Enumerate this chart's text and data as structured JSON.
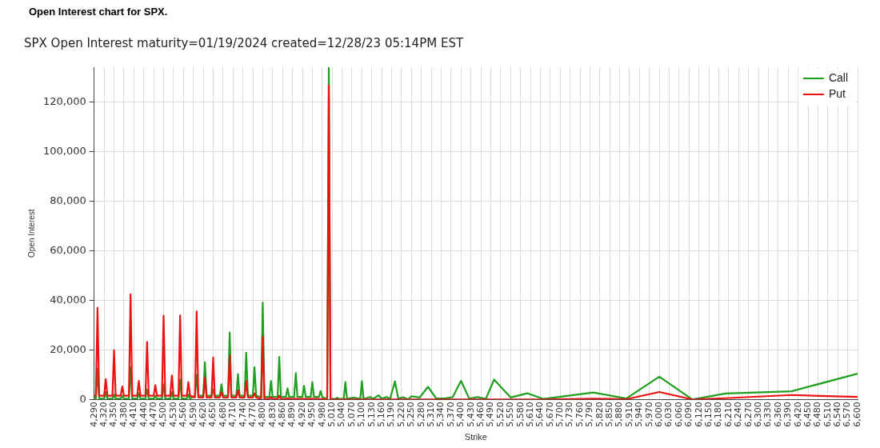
{
  "chart_data": {
    "type": "line",
    "title": "Open Interest chart for SPX.",
    "subtitle": "SPX Open Interest maturity=01/19/2024 created=12/28/23 05:14PM EST",
    "xlabel": "Strike",
    "ylabel": "Open Interest",
    "x": [
      4290,
      4295,
      4300,
      4305,
      4320,
      4325,
      4330,
      4345,
      4350,
      4355,
      4370,
      4375,
      4380,
      4395,
      4400,
      4405,
      4420,
      4425,
      4430,
      4445,
      4450,
      4455,
      4470,
      4475,
      4480,
      4495,
      4500,
      4505,
      4520,
      4525,
      4530,
      4545,
      4550,
      4555,
      4570,
      4575,
      4580,
      4595,
      4600,
      4605,
      4620,
      4625,
      4630,
      4645,
      4650,
      4655,
      4670,
      4675,
      4680,
      4695,
      4700,
      4705,
      4720,
      4725,
      4730,
      4745,
      4750,
      4755,
      4770,
      4775,
      4780,
      4795,
      4800,
      4805,
      4820,
      4825,
      4830,
      4845,
      4850,
      4855,
      4870,
      4875,
      4880,
      4895,
      4900,
      4905,
      4920,
      4925,
      4930,
      4945,
      4950,
      4955,
      4970,
      4975,
      4980,
      4995,
      5000,
      5005,
      5020,
      5025,
      5030,
      5045,
      5050,
      5055,
      5070,
      5075,
      5080,
      5095,
      5100,
      5105,
      5125,
      5135,
      5150,
      5160,
      5175,
      5185,
      5200,
      5210,
      5225,
      5240,
      5250,
      5275,
      5300,
      5325,
      5350,
      5375,
      5400,
      5425,
      5450,
      5475,
      5500,
      5550,
      5600,
      5650,
      5800,
      5900,
      6000,
      6100,
      6200,
      6400,
      6600
    ],
    "series": [
      {
        "name": "Call",
        "color": "#1f9e1f",
        "values": [
          1000,
          300,
          12300,
          300,
          300,
          3000,
          300,
          300,
          2000,
          300,
          300,
          1500,
          300,
          300,
          13000,
          300,
          300,
          2500,
          300,
          300,
          4000,
          300,
          300,
          1500,
          300,
          300,
          6000,
          300,
          300,
          3000,
          300,
          300,
          8000,
          300,
          300,
          2000,
          300,
          1500,
          10000,
          1500,
          1500,
          15000,
          1500,
          1500,
          4000,
          1500,
          1500,
          6100,
          1500,
          1500,
          27000,
          1500,
          1500,
          10200,
          1500,
          1500,
          18900,
          1500,
          1500,
          13000,
          1500,
          1000,
          39000,
          1000,
          1000,
          7500,
          1000,
          1000,
          17200,
          1000,
          1000,
          4500,
          1000,
          1000,
          10600,
          1000,
          1000,
          5500,
          1000,
          1000,
          7000,
          1000,
          1000,
          3400,
          1000,
          200,
          134000,
          200,
          200,
          700,
          200,
          200,
          7000,
          200,
          600,
          800,
          600,
          200,
          7400,
          200,
          1000,
          300,
          1700,
          300,
          1000,
          100,
          7300,
          400,
          900,
          0,
          1300,
          800,
          5100,
          400,
          400,
          1000,
          7500,
          300,
          1000,
          200,
          8000,
          800,
          2500,
          200,
          2800,
          400,
          9200,
          0,
          2400,
          3300,
          10400
        ]
      },
      {
        "name": "Put",
        "color": "#ee1111",
        "values": [
          1500,
          1500,
          37000,
          1500,
          1500,
          8200,
          1500,
          1500,
          19800,
          1500,
          1500,
          5200,
          1500,
          1500,
          42400,
          1500,
          1500,
          7500,
          1500,
          1500,
          23200,
          1500,
          1500,
          5800,
          1500,
          1500,
          33800,
          1500,
          1500,
          9700,
          1500,
          1500,
          33900,
          1500,
          1500,
          7000,
          1500,
          800,
          35500,
          800,
          800,
          8900,
          800,
          800,
          16900,
          800,
          800,
          3000,
          800,
          800,
          17800,
          800,
          800,
          3700,
          800,
          800,
          7500,
          800,
          800,
          2400,
          800,
          200,
          25400,
          200,
          200,
          1000,
          200,
          200,
          1500,
          200,
          200,
          500,
          200,
          200,
          300,
          200,
          200,
          200,
          200,
          200,
          300,
          200,
          200,
          100,
          200,
          0,
          126600,
          0,
          0,
          100,
          0,
          0,
          100,
          0,
          0,
          0,
          0,
          0,
          0,
          0,
          0,
          0,
          0,
          0,
          0,
          0,
          0,
          0,
          0,
          0,
          0,
          0,
          0,
          0,
          0,
          0,
          0,
          0,
          0,
          0,
          0,
          0,
          0,
          0,
          300,
          100,
          3000,
          0,
          500,
          1800,
          1000
        ]
      }
    ],
    "xlim": [
      4290,
      6600
    ],
    "xticks": [
      {
        "value": 4290,
        "label": "4,290"
      },
      {
        "value": 4320,
        "label": "4,320"
      },
      {
        "value": 4350,
        "label": "4,350"
      },
      {
        "value": 4380,
        "label": "4,380"
      },
      {
        "value": 4410,
        "label": "4,410"
      },
      {
        "value": 4440,
        "label": "4,440"
      },
      {
        "value": 4470,
        "label": "4,470"
      },
      {
        "value": 4500,
        "label": "4,500"
      },
      {
        "value": 4530,
        "label": "4,530"
      },
      {
        "value": 4560,
        "label": "4,560"
      },
      {
        "value": 4590,
        "label": "4,590"
      },
      {
        "value": 4620,
        "label": "4,620"
      },
      {
        "value": 4650,
        "label": "4,650"
      },
      {
        "value": 4680,
        "label": "4,680"
      },
      {
        "value": 4710,
        "label": "4,710"
      },
      {
        "value": 4740,
        "label": "4,740"
      },
      {
        "value": 4770,
        "label": "4,770"
      },
      {
        "value": 4800,
        "label": "4,800"
      },
      {
        "value": 4830,
        "label": "4,830"
      },
      {
        "value": 4860,
        "label": "4,860"
      },
      {
        "value": 4890,
        "label": "4,890"
      },
      {
        "value": 4920,
        "label": "4,920"
      },
      {
        "value": 4950,
        "label": "4,950"
      },
      {
        "value": 4980,
        "label": "4,980"
      },
      {
        "value": 5010,
        "label": "5,010"
      },
      {
        "value": 5040,
        "label": "5,040"
      },
      {
        "value": 5070,
        "label": "5,070"
      },
      {
        "value": 5100,
        "label": "5,100"
      },
      {
        "value": 5130,
        "label": "5,130"
      },
      {
        "value": 5160,
        "label": "5,160"
      },
      {
        "value": 5190,
        "label": "5,190"
      },
      {
        "value": 5220,
        "label": "5,220"
      },
      {
        "value": 5250,
        "label": "5,250"
      },
      {
        "value": 5280,
        "label": "5,280"
      },
      {
        "value": 5310,
        "label": "5,310"
      },
      {
        "value": 5340,
        "label": "5,340"
      },
      {
        "value": 5370,
        "label": "5,370"
      },
      {
        "value": 5400,
        "label": "5,400"
      },
      {
        "value": 5430,
        "label": "5,430"
      },
      {
        "value": 5460,
        "label": "5,460"
      },
      {
        "value": 5490,
        "label": "5,490"
      },
      {
        "value": 5520,
        "label": "5,520"
      },
      {
        "value": 5550,
        "label": "5,550"
      },
      {
        "value": 5580,
        "label": "5,580"
      },
      {
        "value": 5610,
        "label": "5,610"
      },
      {
        "value": 5640,
        "label": "5,640"
      },
      {
        "value": 5670,
        "label": "5,670"
      },
      {
        "value": 5700,
        "label": "5,700"
      },
      {
        "value": 5730,
        "label": "5,730"
      },
      {
        "value": 5760,
        "label": "5,760"
      },
      {
        "value": 5790,
        "label": "5,790"
      },
      {
        "value": 5820,
        "label": "5,820"
      },
      {
        "value": 5850,
        "label": "5,850"
      },
      {
        "value": 5880,
        "label": "5,880"
      },
      {
        "value": 5910,
        "label": "5,910"
      },
      {
        "value": 5940,
        "label": "5,940"
      },
      {
        "value": 5970,
        "label": "5,970"
      },
      {
        "value": 6000,
        "label": "6,000"
      },
      {
        "value": 6030,
        "label": "6,030"
      },
      {
        "value": 6060,
        "label": "6,060"
      },
      {
        "value": 6090,
        "label": "6,090"
      },
      {
        "value": 6120,
        "label": "6,120"
      },
      {
        "value": 6150,
        "label": "6,150"
      },
      {
        "value": 6180,
        "label": "6,180"
      },
      {
        "value": 6210,
        "label": "6,210"
      },
      {
        "value": 6240,
        "label": "6,240"
      },
      {
        "value": 6270,
        "label": "6,270"
      },
      {
        "value": 6300,
        "label": "6,300"
      },
      {
        "value": 6330,
        "label": "6,330"
      },
      {
        "value": 6360,
        "label": "6,360"
      },
      {
        "value": 6390,
        "label": "6,390"
      },
      {
        "value": 6420,
        "label": "6,420"
      },
      {
        "value": 6450,
        "label": "6,450"
      },
      {
        "value": 6480,
        "label": "6,480"
      },
      {
        "value": 6510,
        "label": "6,510"
      },
      {
        "value": 6540,
        "label": "6,540"
      },
      {
        "value": 6570,
        "label": "6,570"
      },
      {
        "value": 6600,
        "label": "6,600"
      }
    ],
    "ylim": [
      0,
      134000
    ],
    "yticks": [
      0,
      {
        "value": 20000,
        "label": "20,000"
      },
      {
        "value": 40000,
        "label": "40,000"
      },
      {
        "value": 60000,
        "label": "60,000"
      },
      {
        "value": 80000,
        "label": "80,000"
      },
      {
        "value": 100000,
        "label": "100,000"
      },
      {
        "value": 120000,
        "label": "120,000"
      }
    ],
    "grid": true,
    "legend": "top right",
    "marker": "none",
    "line_style": "solid"
  }
}
